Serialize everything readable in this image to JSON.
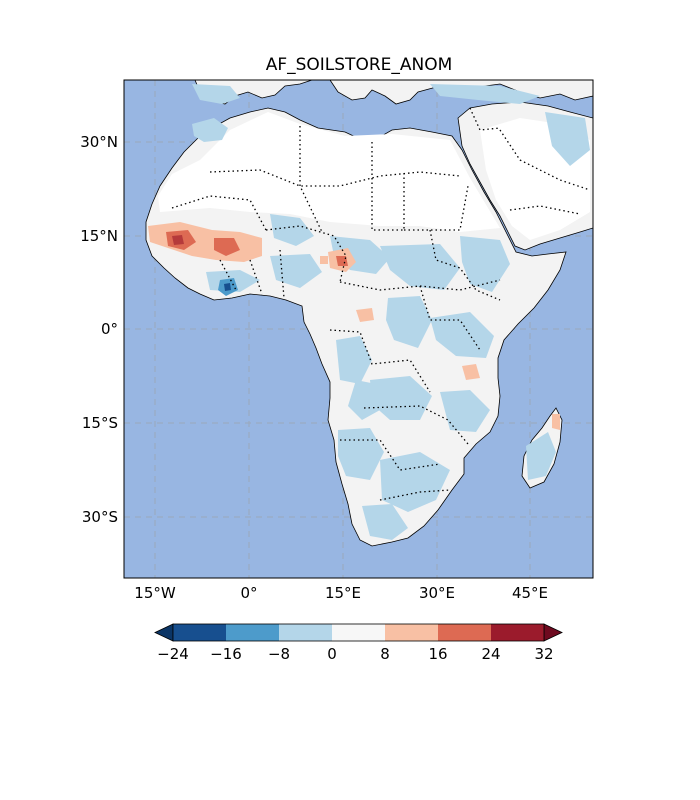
{
  "title": "AF_SOILSTORE_ANOM",
  "colors": {
    "ocean": "#98b6e2",
    "land_neutral": "#f3f3f3",
    "land_white": "#ffffff",
    "coast": "#000000"
  },
  "axes": {
    "lat_labels": [
      "30°N",
      "15°N",
      "0°",
      "15°S",
      "30°S"
    ],
    "lon_labels": [
      "15°W",
      "0°",
      "15°E",
      "30°E",
      "45°E"
    ]
  },
  "colorbar": {
    "ticks": [
      "−24",
      "−16",
      "−8",
      "0",
      "8",
      "16",
      "24",
      "32"
    ],
    "colors": [
      "#174f8f",
      "#4d9bcb",
      "#b4d6e9",
      "#f7f7f7",
      "#f8c0a4",
      "#dd6a53",
      "#9b1b2c"
    ],
    "extend_low_color": "#0b3566",
    "extend_high_color": "#6e0a1f"
  }
}
